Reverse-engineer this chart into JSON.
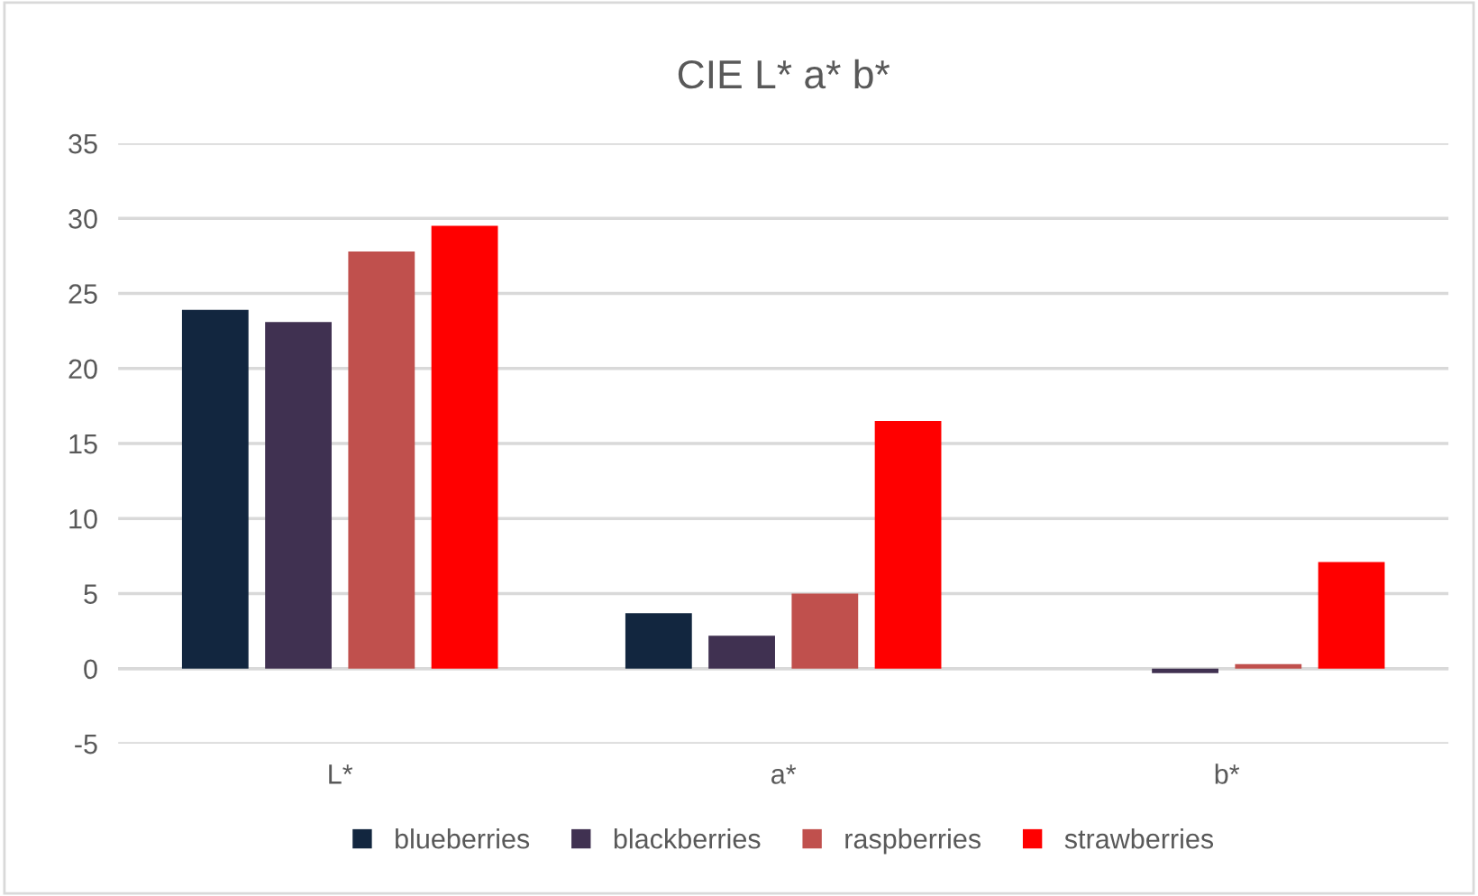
{
  "chart_data": {
    "type": "bar",
    "title": "CIE L* a* b*",
    "categories": [
      "L*",
      "a*",
      "b*"
    ],
    "series": [
      {
        "name": "blueberries",
        "color": "#12263f",
        "values": [
          23.9,
          3.7,
          0
        ]
      },
      {
        "name": "blackberries",
        "color": "#403151",
        "values": [
          23.1,
          2.2,
          -0.3
        ]
      },
      {
        "name": "raspberries",
        "color": "#c0504d",
        "values": [
          27.8,
          5.0,
          0.3
        ]
      },
      {
        "name": "strawberries",
        "color": "#ff0000",
        "values": [
          29.5,
          16.5,
          7.1
        ]
      }
    ],
    "ylim": [
      -5,
      35
    ],
    "yticks": [
      -5,
      0,
      5,
      10,
      15,
      20,
      25,
      30,
      35
    ],
    "grid": "y",
    "legend": "bottom"
  }
}
